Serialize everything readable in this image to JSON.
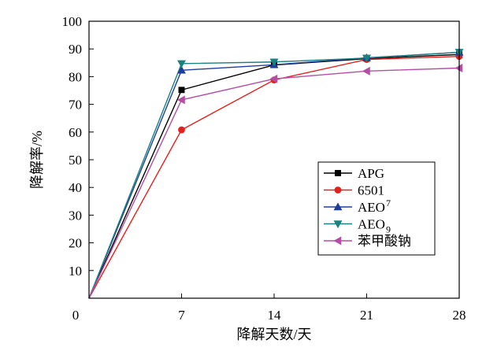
{
  "chart_data": {
    "type": "line",
    "title": "",
    "xlabel": "降解天数/天",
    "ylabel": "降解率/%",
    "x": [
      0,
      7,
      14,
      21,
      28
    ],
    "xticks": [
      "0",
      "7",
      "14",
      "21",
      "28"
    ],
    "xlim": [
      0,
      28
    ],
    "yticks": [
      "10",
      "20",
      "30",
      "40",
      "50",
      "60",
      "70",
      "80",
      "90",
      "100"
    ],
    "ylim": [
      0,
      100
    ],
    "grid": false,
    "legend_position": "bottom-right",
    "series": [
      {
        "name": "APG",
        "name_sub": "",
        "values": [
          0,
          75.2,
          84.2,
          86.5,
          88.0
        ],
        "color": "#000000",
        "marker": "square"
      },
      {
        "name": "6501",
        "name_sub": "",
        "values": [
          0,
          60.8,
          78.8,
          86.2,
          87.3
        ],
        "color": "#e3211c",
        "marker": "circle"
      },
      {
        "name": "AEO",
        "name_sub": "7",
        "values": [
          0,
          82.3,
          84.3,
          86.8,
          88.8
        ],
        "color": "#1f3e9b",
        "marker": "triangle-up"
      },
      {
        "name": "AEO",
        "name_sub": "9",
        "values": [
          0,
          84.7,
          85.3,
          86.7,
          88.8
        ],
        "color": "#1b8080",
        "marker": "triangle-down"
      },
      {
        "name": "苯甲酸钠",
        "name_sub": "",
        "values": [
          0,
          71.6,
          79.2,
          82.0,
          83.1
        ],
        "color": "#b64da5",
        "marker": "triangle-left"
      }
    ]
  }
}
